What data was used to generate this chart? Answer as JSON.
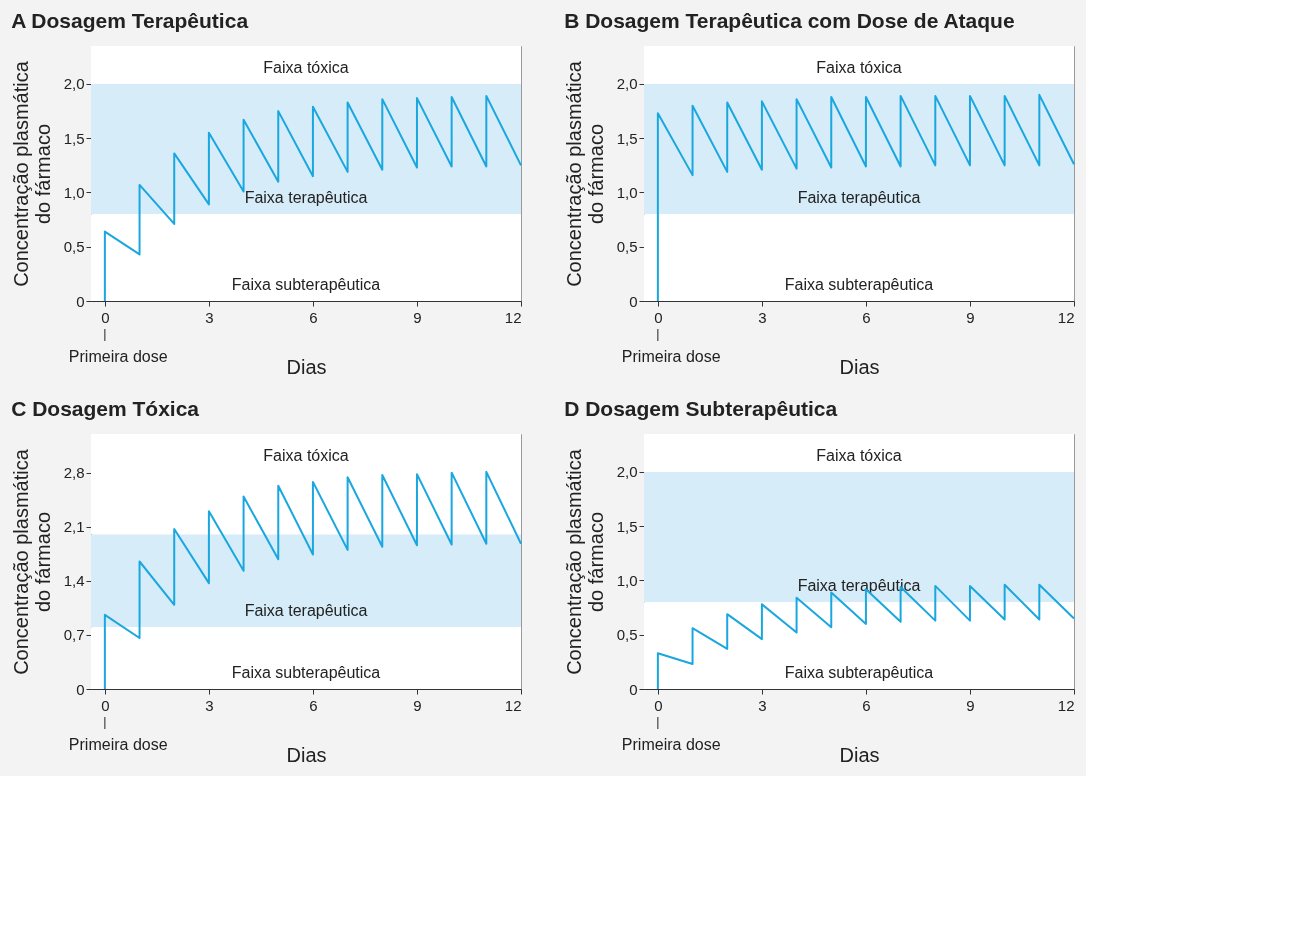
{
  "chart_data": [
    {
      "type": "line",
      "title": "A Dosagem Terapêutica",
      "xlabel": "Dias",
      "ylabel": "Concentração plasmática\ndo fármaco",
      "x": [
        0,
        0,
        1,
        1,
        2,
        2,
        3,
        3,
        4,
        4,
        5,
        5,
        6,
        6,
        7,
        7,
        8,
        8,
        9,
        9,
        10,
        10,
        11,
        11,
        12
      ],
      "series": [
        {
          "color": "#1aa7e0",
          "values": [
            0,
            0.64,
            0.43,
            1.07,
            0.71,
            1.36,
            0.89,
            1.55,
            1.01,
            1.67,
            1.1,
            1.75,
            1.15,
            1.79,
            1.19,
            1.83,
            1.21,
            1.86,
            1.23,
            1.87,
            1.24,
            1.88,
            1.24,
            1.89,
            1.25
          ]
        }
      ],
      "xlim": [
        -0.4,
        12
      ],
      "xticks": [
        0,
        3,
        6,
        9,
        12
      ],
      "ylim": [
        0,
        2.35
      ],
      "yticks": [
        0,
        {
          "value": 0.5,
          "label": "0,5"
        },
        {
          "value": 1,
          "label": "1,0"
        },
        {
          "value": 1.5,
          "label": "1,5"
        },
        {
          "value": 2,
          "label": "2,0"
        }
      ],
      "bands": [
        {
          "axis": "y",
          "from": 2,
          "to": 2.35,
          "color": "#ffffff",
          "label": "Faixa tóxica"
        },
        {
          "axis": "y",
          "from": 0.8,
          "to": 2,
          "color": "#d6ecf8",
          "label": "Faixa terapêutica"
        },
        {
          "axis": "y",
          "from": 0,
          "to": 0.8,
          "color": "#ffffff",
          "label": "Faixa subterapêutica"
        }
      ],
      "annotations": [
        "Primeira dose"
      ],
      "grid": false
    },
    {
      "type": "line",
      "title": "B Dosagem Terapêutica com Dose de Ataque",
      "xlabel": "Dias",
      "ylabel": "Concentração plasmática\ndo fármaco",
      "x": [
        0,
        0,
        1,
        1,
        2,
        2,
        3,
        3,
        4,
        4,
        5,
        5,
        6,
        6,
        7,
        7,
        8,
        8,
        9,
        9,
        10,
        10,
        11,
        11,
        12
      ],
      "series": [
        {
          "color": "#1aa7e0",
          "values": [
            0,
            1.73,
            1.16,
            1.8,
            1.19,
            1.83,
            1.21,
            1.84,
            1.22,
            1.86,
            1.23,
            1.88,
            1.24,
            1.88,
            1.24,
            1.89,
            1.25,
            1.89,
            1.25,
            1.89,
            1.25,
            1.89,
            1.25,
            1.9,
            1.26
          ]
        }
      ],
      "xlim": [
        -0.4,
        12
      ],
      "xticks": [
        0,
        3,
        6,
        9,
        12
      ],
      "ylim": [
        0,
        2.35
      ],
      "yticks": [
        0,
        {
          "value": 0.5,
          "label": "0,5"
        },
        {
          "value": 1,
          "label": "1,0"
        },
        {
          "value": 1.5,
          "label": "1,5"
        },
        {
          "value": 2,
          "label": "2,0"
        }
      ],
      "bands": [
        {
          "axis": "y",
          "from": 2,
          "to": 2.35,
          "color": "#ffffff",
          "label": "Faixa tóxica"
        },
        {
          "axis": "y",
          "from": 0.8,
          "to": 2,
          "color": "#d6ecf8",
          "label": "Faixa terapêutica"
        },
        {
          "axis": "y",
          "from": 0,
          "to": 0.8,
          "color": "#ffffff",
          "label": "Faixa subterapêutica"
        }
      ],
      "annotations": [
        "Primeira dose"
      ],
      "grid": false
    },
    {
      "type": "line",
      "title": "C Dosagem Tóxica",
      "xlabel": "Dias",
      "ylabel": "Concentração plasmática\ndo fármaco",
      "x": [
        0,
        0,
        1,
        1,
        2,
        2,
        3,
        3,
        4,
        4,
        5,
        5,
        6,
        6,
        7,
        7,
        8,
        8,
        9,
        9,
        10,
        10,
        11,
        11,
        12
      ],
      "series": [
        {
          "color": "#1aa7e0",
          "values": [
            0,
            0.96,
            0.66,
            1.65,
            1.09,
            2.07,
            1.37,
            2.3,
            1.53,
            2.49,
            1.68,
            2.63,
            1.74,
            2.68,
            1.8,
            2.74,
            1.84,
            2.77,
            1.86,
            2.78,
            1.87,
            2.8,
            1.88,
            2.81,
            1.88
          ]
        }
      ],
      "xlim": [
        -0.4,
        12
      ],
      "xticks": [
        0,
        3,
        6,
        9,
        12
      ],
      "ylim": [
        0,
        3.3
      ],
      "yticks": [
        0,
        {
          "value": 0.7,
          "label": "0,7"
        },
        {
          "value": 1.4,
          "label": "1,4"
        },
        {
          "value": 2.1,
          "label": "2,1"
        },
        {
          "value": 2.8,
          "label": "2,8"
        }
      ],
      "bands": [
        {
          "axis": "y",
          "from": 2,
          "to": 3.3,
          "color": "#ffffff",
          "label": "Faixa tóxica"
        },
        {
          "axis": "y",
          "from": 0.8,
          "to": 2,
          "color": "#d6ecf8",
          "label": "Faixa terapêutica"
        },
        {
          "axis": "y",
          "from": 0,
          "to": 0.8,
          "color": "#ffffff",
          "label": "Faixa subterapêutica"
        }
      ],
      "annotations": [
        "Primeira dose"
      ],
      "grid": false
    },
    {
      "type": "line",
      "title": "D Dosagem Subterapêutica",
      "xlabel": "Dias",
      "ylabel": "Concentração plasmática\ndo fármaco",
      "x": [
        0,
        0,
        1,
        1,
        2,
        2,
        3,
        3,
        4,
        4,
        5,
        5,
        6,
        6,
        7,
        7,
        8,
        8,
        9,
        9,
        10,
        10,
        11,
        11,
        12
      ],
      "series": [
        {
          "color": "#1aa7e0",
          "values": [
            0,
            0.33,
            0.23,
            0.56,
            0.37,
            0.69,
            0.46,
            0.78,
            0.52,
            0.84,
            0.57,
            0.89,
            0.6,
            0.92,
            0.62,
            0.94,
            0.63,
            0.95,
            0.63,
            0.95,
            0.64,
            0.96,
            0.64,
            0.96,
            0.65
          ]
        }
      ],
      "xlim": [
        -0.4,
        12
      ],
      "xticks": [
        0,
        3,
        6,
        9,
        12
      ],
      "ylim": [
        0,
        2.35
      ],
      "yticks": [
        0,
        {
          "value": 0.5,
          "label": "0,5"
        },
        {
          "value": 1,
          "label": "1,0"
        },
        {
          "value": 1.5,
          "label": "1,5"
        },
        {
          "value": 2,
          "label": "2,0"
        }
      ],
      "bands": [
        {
          "axis": "y",
          "from": 2,
          "to": 2.35,
          "color": "#ffffff",
          "label": "Faixa tóxica"
        },
        {
          "axis": "y",
          "from": 0.8,
          "to": 2,
          "color": "#d6ecf8",
          "label": "Faixa terapêutica"
        },
        {
          "axis": "y",
          "from": 0,
          "to": 0.8,
          "color": "#ffffff",
          "label": "Faixa subterapêutica"
        }
      ],
      "annotations": [
        "Primeira dose"
      ],
      "grid": false
    }
  ]
}
